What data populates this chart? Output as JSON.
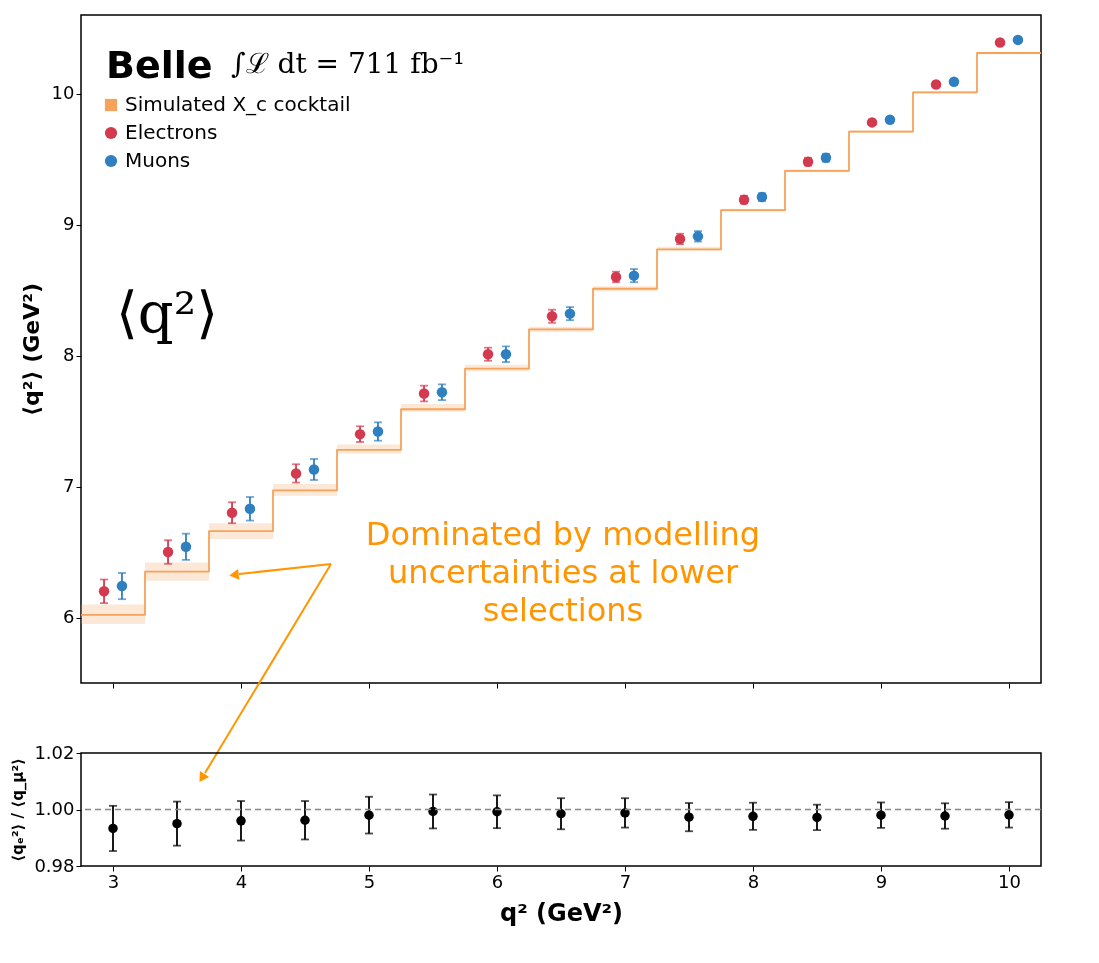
{
  "chart_data": [
    {
      "type": "scatter",
      "ylabel": "⟨q²⟩ (GeV²)",
      "xlim": [
        2.75,
        10.25
      ],
      "xticks": [
        3,
        4,
        5,
        6,
        7,
        8,
        9,
        10
      ],
      "ylim": [
        5.5,
        10.6
      ],
      "yticks": [
        6,
        7,
        8,
        9,
        10
      ],
      "tick_labels": "y",
      "grid": false,
      "legend": "top left",
      "marker": "circle",
      "annotations": [
        "Belle",
        "∫ℒ dt = 711 fb⁻¹",
        "⟨q²⟩",
        "Dominated by modelling\nuncertainties at lower\nselections"
      ],
      "series": [
        {
          "name": "Simulated X_c cocktail",
          "type": "step",
          "marker": "none",
          "color": "#f5a35b",
          "x": [
            2.75,
            3.25,
            3.75,
            4.25,
            4.75,
            5.25,
            5.75,
            6.25,
            6.75,
            7.25,
            7.75,
            8.25,
            8.75,
            9.25,
            9.75,
            10.25
          ],
          "values": [
            6.02,
            6.35,
            6.66,
            6.97,
            7.28,
            7.59,
            7.9,
            8.2,
            8.51,
            8.81,
            9.11,
            9.41,
            9.71,
            10.01,
            10.31,
            10.31
          ],
          "lower": [
            5.95,
            6.28,
            6.6,
            6.93,
            7.25,
            7.57,
            7.88,
            8.18,
            8.49,
            8.8,
            9.1,
            9.4,
            9.7,
            10.0,
            10.3,
            10.3
          ],
          "upper": [
            6.1,
            6.42,
            6.72,
            7.02,
            7.32,
            7.63,
            7.93,
            8.22,
            8.53,
            8.83,
            9.12,
            9.42,
            9.72,
            10.02,
            10.32,
            10.32
          ]
        },
        {
          "name": "Electrons",
          "color": "#d33a4f",
          "x": [
            2.93,
            3.43,
            3.93,
            4.43,
            4.93,
            5.43,
            5.93,
            6.43,
            6.93,
            7.43,
            7.93,
            8.43,
            8.93,
            9.43,
            9.93
          ],
          "values": [
            6.2,
            6.5,
            6.8,
            7.1,
            7.4,
            7.71,
            8.01,
            8.3,
            8.6,
            8.89,
            9.19,
            9.48,
            9.78,
            10.07,
            10.39
          ],
          "errors": [
            0.09,
            0.09,
            0.08,
            0.07,
            0.06,
            0.06,
            0.05,
            0.05,
            0.04,
            0.04,
            0.03,
            0.03,
            0.02,
            0.02,
            0.02
          ]
        },
        {
          "name": "Muons",
          "color": "#2f7fc1",
          "x": [
            3.07,
            3.57,
            4.07,
            4.57,
            5.07,
            5.57,
            6.07,
            6.57,
            7.07,
            7.57,
            8.07,
            8.57,
            9.07,
            9.57,
            10.07
          ],
          "values": [
            6.24,
            6.54,
            6.83,
            7.13,
            7.42,
            7.72,
            8.01,
            8.32,
            8.61,
            8.91,
            9.21,
            9.51,
            9.8,
            10.09,
            10.41
          ],
          "errors": [
            0.1,
            0.1,
            0.09,
            0.08,
            0.07,
            0.06,
            0.06,
            0.05,
            0.05,
            0.04,
            0.03,
            0.03,
            0.02,
            0.02,
            0.02
          ]
        }
      ]
    },
    {
      "type": "scatter",
      "xlabel": "q² (GeV²)",
      "ylabel": "⟨qₑ²⟩ / ⟨q_μ²⟩",
      "xlim": [
        2.75,
        10.25
      ],
      "xticks": [
        3,
        4,
        5,
        6,
        7,
        8,
        9,
        10
      ],
      "ylim": [
        0.98,
        1.02
      ],
      "yticks": [
        {
          "value": 0.98,
          "label": "0.98"
        },
        {
          "value": 1.0,
          "label": "1.00"
        },
        {
          "value": 1.02,
          "label": "1.02"
        }
      ],
      "grid": false,
      "marker": "circle",
      "ref_lines": [
        {
          "axis": "y",
          "value": 1.0,
          "color": "#888888",
          "line_style": "dashed"
        }
      ],
      "series": [
        {
          "color": "#000000",
          "x": [
            3,
            3.5,
            4,
            4.5,
            5,
            5.5,
            6,
            6.5,
            7,
            7.5,
            8,
            8.5,
            9,
            9.5,
            10
          ],
          "values": [
            0.9933,
            0.995,
            0.996,
            0.9962,
            0.998,
            0.9993,
            0.9992,
            0.9985,
            0.9988,
            0.9973,
            0.9976,
            0.9972,
            0.998,
            0.9977,
            0.9981
          ],
          "errors": [
            0.008,
            0.0078,
            0.007,
            0.0068,
            0.0065,
            0.006,
            0.0058,
            0.0055,
            0.0052,
            0.005,
            0.0048,
            0.0045,
            0.0045,
            0.0045,
            0.0045
          ]
        }
      ]
    }
  ]
}
